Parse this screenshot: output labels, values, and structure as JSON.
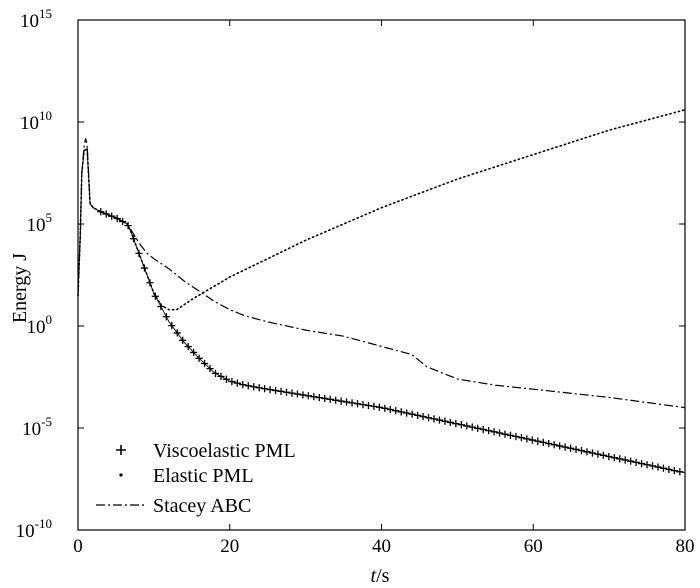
{
  "chart_data": {
    "type": "line",
    "title": "",
    "xlabel": {
      "italic": "t",
      "rest": "/s"
    },
    "ylabel": "Energy J",
    "xlim": [
      0,
      80
    ],
    "ylim_log10": [
      -10,
      15
    ],
    "y_scale": "log",
    "grid": false,
    "legend_placement": "bottom-left",
    "x_ticks": [
      "0",
      "20",
      "40",
      "60",
      "80"
    ],
    "y_ticks": [
      {
        "base": "10",
        "exp": "-10",
        "log": -10
      },
      {
        "base": "10",
        "exp": "-5",
        "log": -5
      },
      {
        "base": "10",
        "exp": "0",
        "log": 0
      },
      {
        "base": "10",
        "exp": "5",
        "log": 5
      },
      {
        "base": "10",
        "exp": "10",
        "log": 10
      },
      {
        "base": "10",
        "exp": "15",
        "log": 15
      }
    ],
    "series": [
      {
        "name": "Viscoelastic PML",
        "marker": "+",
        "x": [
          0,
          0.3,
          0.5,
          0.8,
          1.2,
          1.6,
          2,
          3,
          5,
          6.5,
          7,
          8,
          9,
          10,
          11,
          12,
          14,
          16,
          18,
          20,
          22,
          25,
          30,
          35,
          40,
          45,
          50,
          55,
          60,
          65,
          70,
          75,
          80
        ],
        "log": [
          1.5,
          4.5,
          7.5,
          8.6,
          8.7,
          6.0,
          5.8,
          5.6,
          5.3,
          5.0,
          4.6,
          3.6,
          2.6,
          1.6,
          0.9,
          0.2,
          -0.8,
          -1.6,
          -2.3,
          -2.7,
          -2.9,
          -3.1,
          -3.4,
          -3.7,
          -4.0,
          -4.4,
          -4.8,
          -5.2,
          -5.6,
          -6.0,
          -6.4,
          -6.8,
          -7.2
        ]
      },
      {
        "name": "Elastic PML",
        "marker": "dot",
        "x": [
          0,
          0.3,
          0.5,
          0.8,
          1.2,
          1.6,
          2,
          3,
          5,
          6.5,
          7,
          8,
          9,
          10,
          11,
          12,
          13,
          15,
          20,
          25,
          30,
          40,
          50,
          60,
          70,
          80
        ],
        "log": [
          1.5,
          4.5,
          7.5,
          8.6,
          8.7,
          6.0,
          5.8,
          5.6,
          5.3,
          5.0,
          4.6,
          3.6,
          2.6,
          1.6,
          1.0,
          0.8,
          0.8,
          1.3,
          2.4,
          3.3,
          4.2,
          5.8,
          7.2,
          8.4,
          9.6,
          10.6
        ]
      },
      {
        "name": "Stacey ABC",
        "marker": "dashdot",
        "x": [
          0,
          0.3,
          0.5,
          0.8,
          1.0,
          1.2,
          1.6,
          2,
          3,
          5,
          6.5,
          7,
          8,
          9,
          10,
          12,
          14,
          16,
          18,
          20,
          22,
          25,
          30,
          35,
          40,
          44,
          46,
          50,
          55,
          60,
          70,
          80
        ],
        "log": [
          1.5,
          4.5,
          7.5,
          8.8,
          9.2,
          8.9,
          6.0,
          5.8,
          5.6,
          5.3,
          5.0,
          4.7,
          4.1,
          3.6,
          3.3,
          2.8,
          2.2,
          1.7,
          1.2,
          0.8,
          0.5,
          0.2,
          -0.2,
          -0.5,
          -1.0,
          -1.4,
          -2.0,
          -2.6,
          -2.9,
          -3.1,
          -3.5,
          -4.0
        ]
      }
    ]
  }
}
